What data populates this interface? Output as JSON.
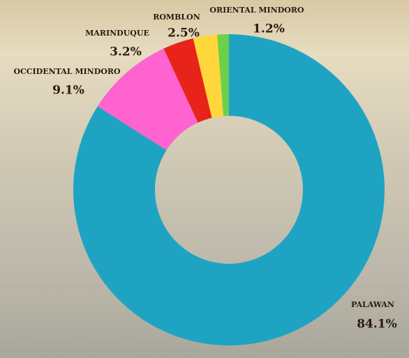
{
  "chart_data": {
    "type": "donut",
    "categories": [
      "PALAWAN",
      "OCCIDENTAL MINDORO",
      "MARINDUQUE",
      "ROMBLON",
      "ORIENTAL MINDORO"
    ],
    "values": [
      84.1,
      9.1,
      3.2,
      2.5,
      1.2
    ],
    "value_labels": [
      "84.1%",
      "9.1%",
      "3.2%",
      "2.5%",
      "1.2%"
    ],
    "colors": [
      "#1ea4c2",
      "#ff63cf",
      "#e8241a",
      "#ffd73a",
      "#6fcf4c"
    ]
  }
}
